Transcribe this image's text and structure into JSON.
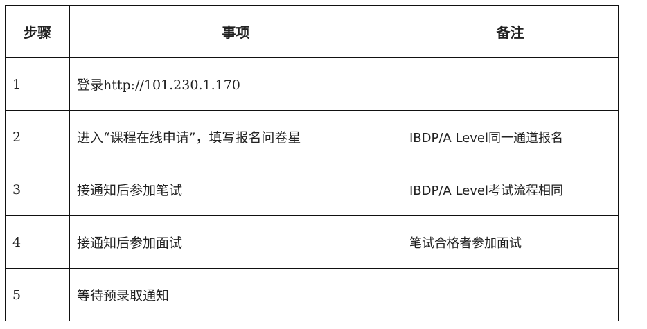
{
  "headers": [
    "步骤",
    "事项",
    "备注"
  ],
  "rows": [
    {
      "step": "1",
      "item": "登录http://101.230.1.170",
      "note": ""
    },
    {
      "step": "2",
      "item": "进入“课程在线申请”，填写报名问卷星",
      "note": "IBDP/A Level同一通道报名"
    },
    {
      "step": "3",
      "item": "接通知后参加笔试",
      "note": "IBDP/A Level考试流程相同"
    },
    {
      "step": "4",
      "item": "接通知后参加面试",
      "note": "笔试合格者参加面试"
    },
    {
      "step": "5",
      "item": "等待预录取通知",
      "note": ""
    }
  ]
}
